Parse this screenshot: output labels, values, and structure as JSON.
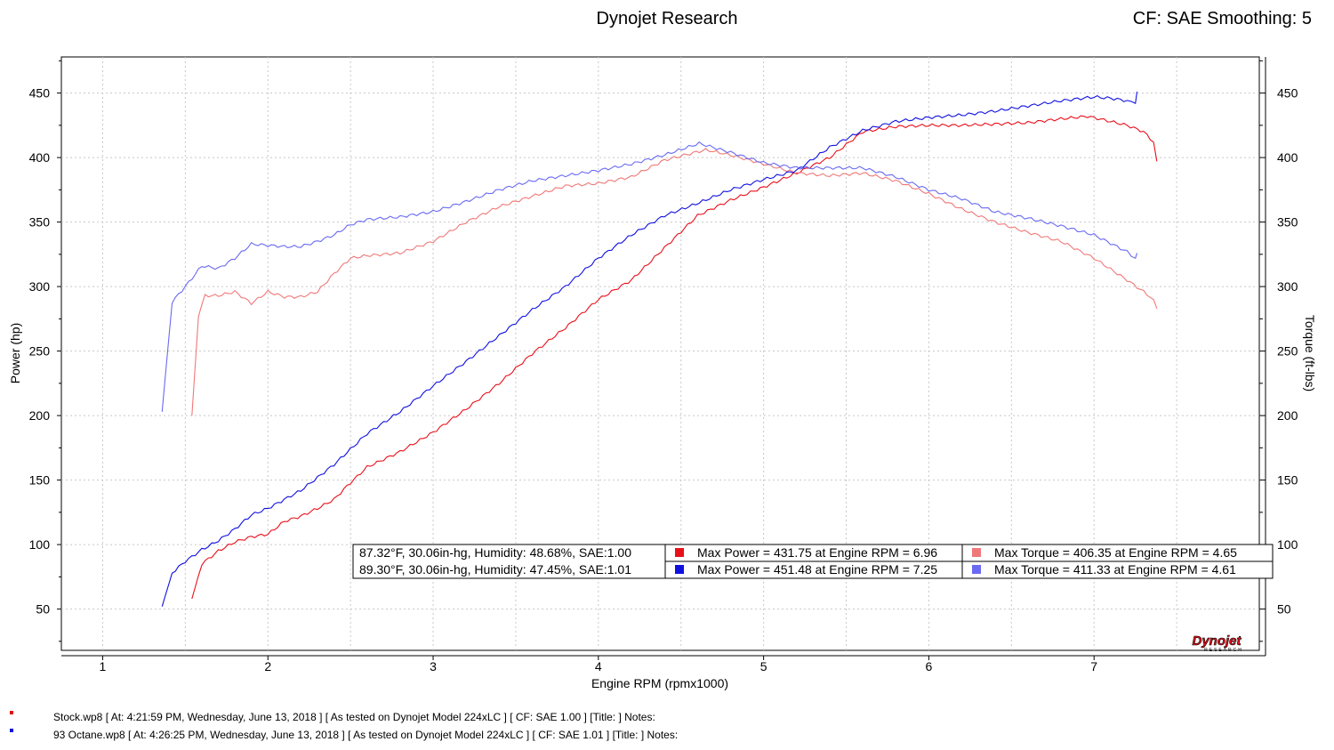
{
  "header": {
    "title": "Dynojet Research",
    "cf_label": "CF: SAE Smoothing: 5"
  },
  "footer": {
    "rows": [
      {
        "text": "Stock.wp8 [ At: 4:21:59 PM, Wednesday, June 13, 2018 ] [ As tested on Dynojet Model 224xLC ] [ CF: SAE 1.00 ] [Title: ]  Notes:",
        "color": "#dd1111"
      },
      {
        "text": "93 Octane.wp8 [ At: 4:26:25 PM, Wednesday, June 13, 2018 ] [ As tested on Dynojet Model 224xLC ] [ CF: SAE 1.01 ] [Title: ]  Notes:",
        "color": "#1111dd"
      }
    ]
  },
  "logo": {
    "text": "Dynojet",
    "subtext": "RESEARCH"
  },
  "chart_data": {
    "type": "line",
    "xlabel": "Engine RPM (rpmx1000)",
    "ylabel_left": "Power (hp)",
    "ylabel_right": "Torque (ft-lbs)",
    "xlim": [
      0.75,
      8.0
    ],
    "ylim": [
      18,
      478
    ],
    "x_ticks": [
      1,
      2,
      3,
      4,
      5,
      6,
      7
    ],
    "y_ticks": [
      50,
      100,
      150,
      200,
      250,
      300,
      350,
      400,
      450
    ],
    "grid": true,
    "legend": {
      "placement": "bottom-right",
      "rows": [
        {
          "conditions": "87.32°F, 30.06in-hg, Humidity: 48.68%, SAE:1.00",
          "power": "Max Power = 431.75 at Engine RPM = 6.96",
          "torque": "Max Torque = 406.35 at Engine RPM = 4.65",
          "power_color": "#e8101a",
          "torque_color": "#f07878"
        },
        {
          "conditions": "89.30°F, 30.06in-hg, Humidity: 47.45%, SAE:1.01",
          "power": "Max Power = 451.48 at Engine RPM = 7.25",
          "torque": "Max Torque = 411.33 at Engine RPM = 4.61",
          "power_color": "#1010e0",
          "torque_color": "#6a6af2"
        }
      ]
    },
    "series": [
      {
        "name": "Stock Power",
        "color": "#e8101a",
        "x": [
          1.54,
          1.6,
          1.7,
          1.8,
          1.9,
          2.0,
          2.1,
          2.2,
          2.3,
          2.4,
          2.5,
          2.6,
          2.8,
          3.0,
          3.2,
          3.4,
          3.6,
          3.8,
          4.0,
          4.2,
          4.4,
          4.6,
          4.8,
          5.0,
          5.2,
          5.4,
          5.6,
          5.8,
          6.0,
          6.2,
          6.4,
          6.6,
          6.8,
          6.96,
          7.1,
          7.2,
          7.3,
          7.36,
          7.38
        ],
        "y": [
          58,
          85,
          95,
          102,
          106,
          108,
          118,
          122,
          128,
          135,
          148,
          160,
          172,
          187,
          205,
          225,
          248,
          268,
          290,
          305,
          330,
          355,
          367,
          377,
          388,
          400,
          420,
          424,
          425,
          425,
          426,
          427,
          430,
          432,
          428,
          425,
          420,
          412,
          397
        ]
      },
      {
        "name": "Stock Torque",
        "color": "#f07878",
        "x": [
          1.54,
          1.58,
          1.62,
          1.7,
          1.8,
          1.9,
          2.0,
          2.1,
          2.2,
          2.3,
          2.4,
          2.5,
          2.6,
          2.8,
          3.0,
          3.2,
          3.4,
          3.6,
          3.8,
          4.0,
          4.2,
          4.4,
          4.65,
          4.8,
          5.0,
          5.2,
          5.4,
          5.6,
          5.8,
          6.0,
          6.2,
          6.4,
          6.6,
          6.8,
          7.0,
          7.2,
          7.3,
          7.36,
          7.38
        ],
        "y": [
          200,
          278,
          293,
          293,
          296,
          287,
          296,
          292,
          292,
          296,
          310,
          322,
          324,
          326,
          335,
          350,
          362,
          370,
          378,
          380,
          385,
          398,
          406,
          402,
          395,
          388,
          386,
          388,
          382,
          372,
          360,
          350,
          342,
          335,
          322,
          305,
          296,
          290,
          283
        ]
      },
      {
        "name": "93 Octane Power",
        "color": "#1010e0",
        "x": [
          1.36,
          1.42,
          1.5,
          1.6,
          1.7,
          1.8,
          1.9,
          2.0,
          2.1,
          2.2,
          2.3,
          2.4,
          2.5,
          2.6,
          2.8,
          3.0,
          3.2,
          3.4,
          3.6,
          3.8,
          4.0,
          4.2,
          4.4,
          4.61,
          4.8,
          5.0,
          5.2,
          5.4,
          5.6,
          5.8,
          6.0,
          6.2,
          6.4,
          6.6,
          6.8,
          7.0,
          7.1,
          7.2,
          7.25,
          7.26
        ],
        "y": [
          52,
          78,
          87,
          96,
          103,
          112,
          123,
          128,
          135,
          142,
          152,
          162,
          174,
          186,
          203,
          223,
          242,
          262,
          282,
          300,
          322,
          340,
          355,
          365,
          375,
          383,
          390,
          408,
          421,
          428,
          431,
          433,
          436,
          440,
          444,
          447,
          446,
          444,
          442,
          451
        ]
      },
      {
        "name": "93 Octane Torque",
        "color": "#6a6af2",
        "x": [
          1.36,
          1.42,
          1.5,
          1.6,
          1.7,
          1.8,
          1.9,
          2.0,
          2.1,
          2.2,
          2.3,
          2.4,
          2.5,
          2.6,
          2.8,
          3.0,
          3.2,
          3.4,
          3.6,
          3.8,
          4.0,
          4.2,
          4.4,
          4.61,
          4.8,
          5.0,
          5.2,
          5.4,
          5.6,
          5.8,
          6.0,
          6.2,
          6.4,
          6.6,
          6.8,
          7.0,
          7.2,
          7.25,
          7.26
        ],
        "y": [
          203,
          288,
          300,
          316,
          314,
          322,
          333,
          332,
          331,
          331,
          335,
          340,
          348,
          352,
          354,
          358,
          366,
          375,
          382,
          386,
          390,
          395,
          402,
          411,
          404,
          396,
          392,
          392,
          392,
          385,
          375,
          368,
          358,
          353,
          347,
          340,
          327,
          322,
          326
        ]
      }
    ]
  }
}
